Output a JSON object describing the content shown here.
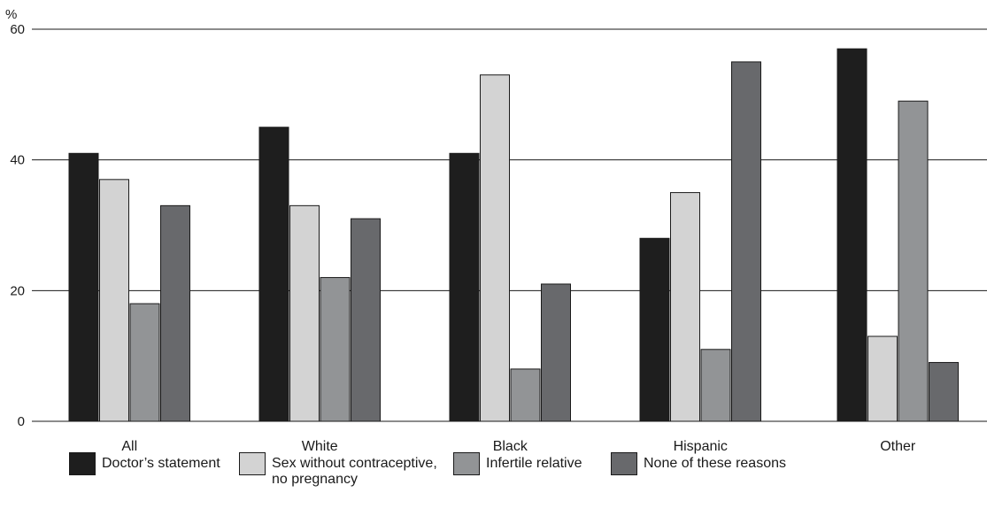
{
  "chart_data": {
    "type": "bar",
    "ylabel": "%",
    "ylim": [
      0,
      60
    ],
    "yticks": [
      0,
      20,
      40,
      60
    ],
    "categories": [
      "All",
      "White",
      "Black",
      "Hispanic",
      "Other"
    ],
    "series": [
      {
        "name": "Doctor’s statement",
        "color": "#1e1e1e",
        "values": [
          41,
          45,
          41,
          28,
          57
        ]
      },
      {
        "name": "Sex without contraceptive,\nno pregnancy",
        "color": "#d3d3d3",
        "values": [
          37,
          33,
          53,
          35,
          13
        ]
      },
      {
        "name": "Infertile relative",
        "color": "#929496",
        "values": [
          18,
          22,
          8,
          11,
          49
        ]
      },
      {
        "name": "None of these reasons",
        "color": "#68696c",
        "values": [
          33,
          31,
          21,
          55,
          9
        ]
      }
    ],
    "grid": true,
    "legend_position": "bottom"
  }
}
